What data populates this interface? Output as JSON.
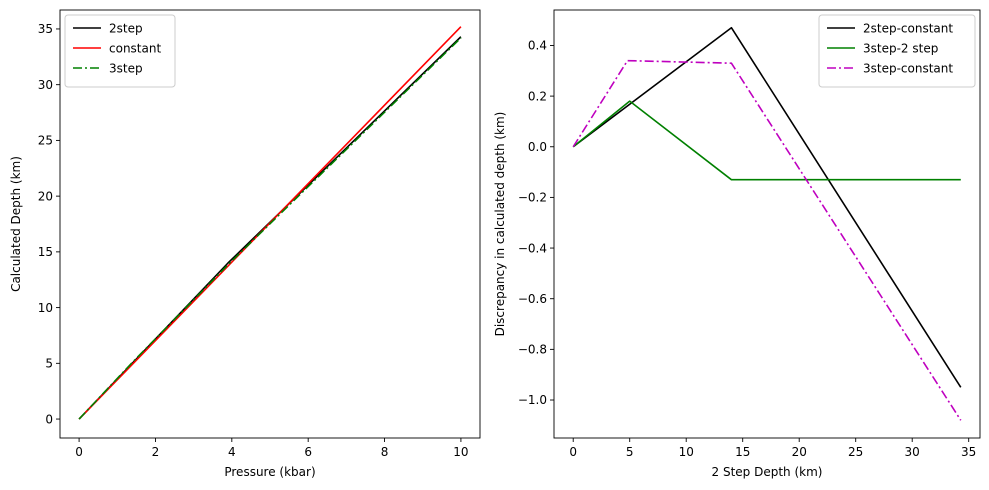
{
  "chart_data": [
    {
      "type": "line",
      "title": "",
      "xlabel": "Pressure (kbar)",
      "ylabel": "Calculated Depth (km)",
      "xlim": [
        -0.5,
        10.5
      ],
      "ylim": [
        -1.7,
        36.7
      ],
      "xticks": [
        0,
        2,
        4,
        6,
        8,
        10
      ],
      "yticks": [
        0,
        5,
        10,
        15,
        20,
        25,
        30,
        35
      ],
      "grid": false,
      "legend_position": "upper-left",
      "series": [
        {
          "name": "2step",
          "color": "#000000",
          "dash": "solid",
          "x": [
            0,
            3.9,
            10
          ],
          "y": [
            0,
            14.0,
            34.3
          ]
        },
        {
          "name": "constant",
          "color": "#ff0000",
          "dash": "solid",
          "x": [
            0,
            10
          ],
          "y": [
            0,
            35.2
          ]
        },
        {
          "name": "3step",
          "color": "#008000",
          "dash": "dashdot",
          "x": [
            0,
            1.4,
            3.9,
            10
          ],
          "y": [
            0,
            5.1,
            13.85,
            34.2
          ]
        }
      ]
    },
    {
      "type": "line",
      "title": "",
      "xlabel": "2 Step Depth (km)",
      "ylabel": "Discrepancy in calculated depth (km)",
      "xlim": [
        -1.7,
        36.0
      ],
      "ylim": [
        -1.15,
        0.54
      ],
      "xticks": [
        0,
        5,
        10,
        15,
        20,
        25,
        30,
        35
      ],
      "yticks": [
        -1.0,
        -0.8,
        -0.6,
        -0.4,
        -0.2,
        0.0,
        0.2,
        0.4
      ],
      "ytick_labels": [
        "−1.0",
        "−0.8",
        "−0.6",
        "−0.4",
        "−0.2",
        "0.0",
        "0.2",
        "0.4"
      ],
      "grid": false,
      "legend_position": "upper-right",
      "series": [
        {
          "name": "2step-constant",
          "color": "#000000",
          "dash": "solid",
          "x": [
            0,
            14.0,
            34.3
          ],
          "y": [
            0,
            0.47,
            -0.95
          ]
        },
        {
          "name": "3step-2 step",
          "color": "#008000",
          "dash": "solid",
          "x": [
            0,
            5.0,
            14.0,
            14.1,
            34.3
          ],
          "y": [
            0,
            0.18,
            -0.13,
            -0.13,
            -0.13
          ]
        },
        {
          "name": "3step-constant",
          "color": "#bf00bf",
          "dash": "dashdot",
          "x": [
            0,
            4.8,
            14.0,
            34.3
          ],
          "y": [
            0,
            0.34,
            0.33,
            -1.08
          ]
        }
      ]
    }
  ]
}
